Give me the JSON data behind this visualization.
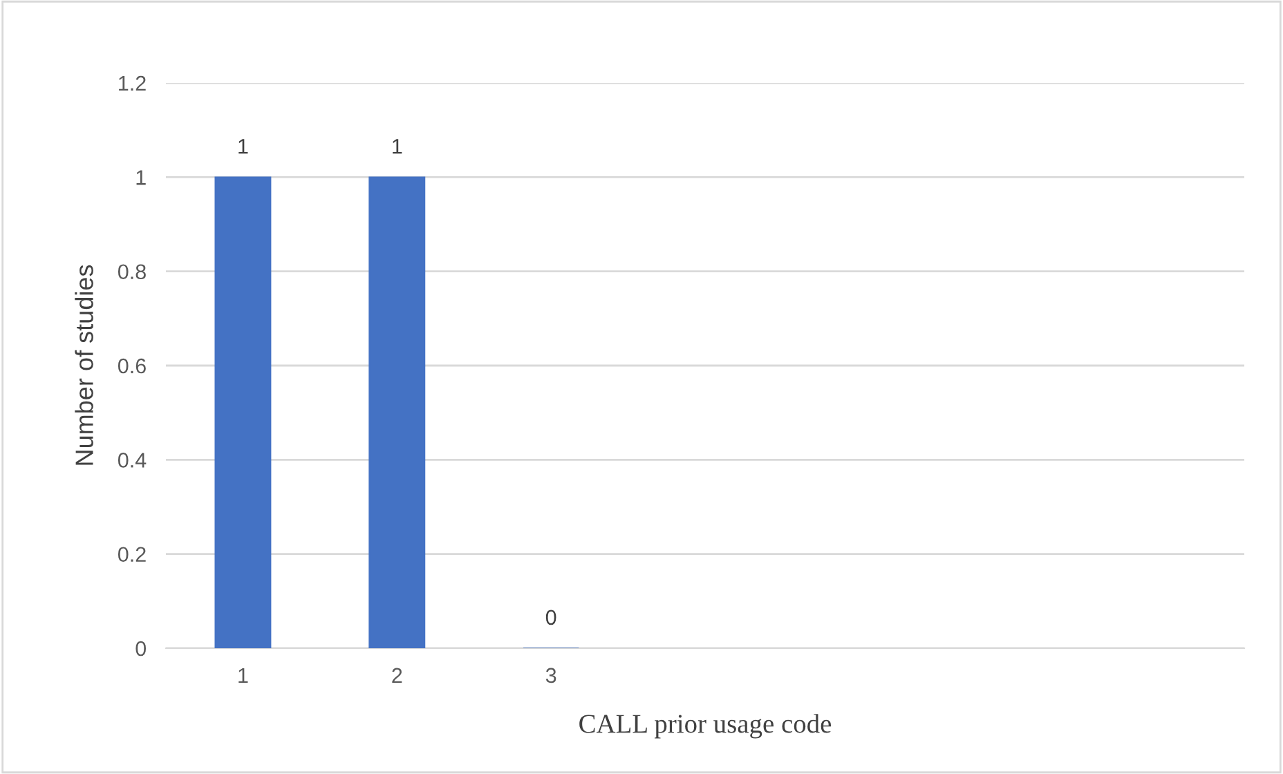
{
  "chart_data": {
    "type": "bar",
    "xlabel": "CALL prior usage code",
    "ylabel": "Number of studies",
    "categories": [
      "1",
      "2",
      "3",
      null,
      null,
      null,
      null
    ],
    "values": [
      1,
      1,
      0,
      null,
      null,
      null,
      null
    ],
    "color": "#4472c4",
    "ylim": [
      0,
      1.2
    ],
    "yticks": [
      0,
      0.2,
      0.4,
      0.6,
      0.8,
      1,
      1.2
    ],
    "grid": "y",
    "data_labels": true
  }
}
